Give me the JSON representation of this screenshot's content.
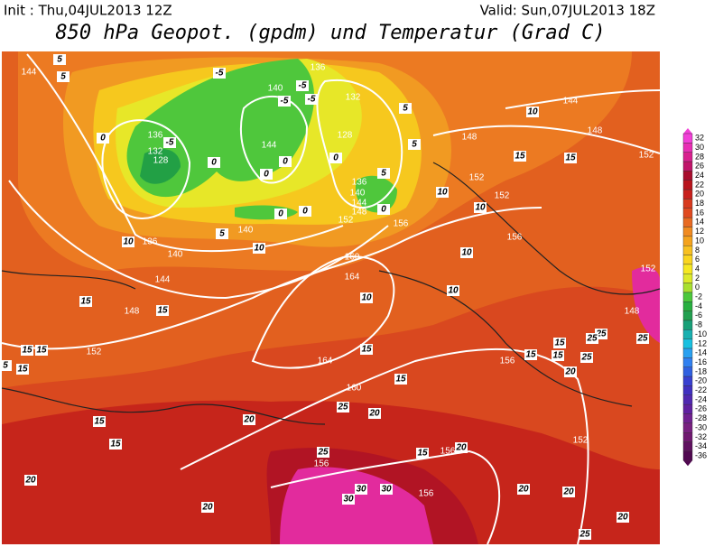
{
  "header": {
    "init": "Init : Thu,04JUL2013 12Z",
    "valid": "Valid: Sun,07JUL2013 18Z",
    "title": "850 hPa Geopot. (gpdm) und Temperatur (Grad C)"
  },
  "colorbar": {
    "labels": [
      32,
      30,
      28,
      26,
      24,
      22,
      20,
      18,
      16,
      14,
      12,
      10,
      8,
      6,
      4,
      2,
      0,
      -2,
      -4,
      -6,
      -8,
      -10,
      -12,
      -14,
      -16,
      -18,
      -20,
      -22,
      -24,
      -26,
      -28,
      -30,
      -32,
      -34,
      -36
    ]
  },
  "map": {
    "geopotential_labels": [
      144,
      140,
      136,
      132,
      128,
      136,
      132,
      128,
      136,
      140,
      144,
      148,
      152,
      156,
      160,
      164,
      144,
      148,
      152,
      152,
      152,
      156,
      140,
      136,
      140,
      144,
      148,
      152,
      164,
      160,
      156,
      156,
      156,
      156,
      152,
      148,
      152,
      144,
      148
    ],
    "temperature_labels": [
      5,
      5,
      -5,
      -5,
      -5,
      5,
      0,
      -5,
      -5,
      0,
      0,
      0,
      0,
      5,
      5,
      0,
      0,
      0,
      5,
      10,
      10,
      15,
      15,
      10,
      10,
      10,
      10,
      10,
      10,
      15,
      15,
      15,
      15,
      15,
      5,
      15,
      15,
      15,
      15,
      20,
      25,
      20,
      20,
      20,
      20,
      25,
      30,
      30,
      30,
      20,
      20,
      20,
      25,
      25,
      25,
      25,
      15,
      15,
      20,
      25,
      15,
      15
    ]
  }
}
